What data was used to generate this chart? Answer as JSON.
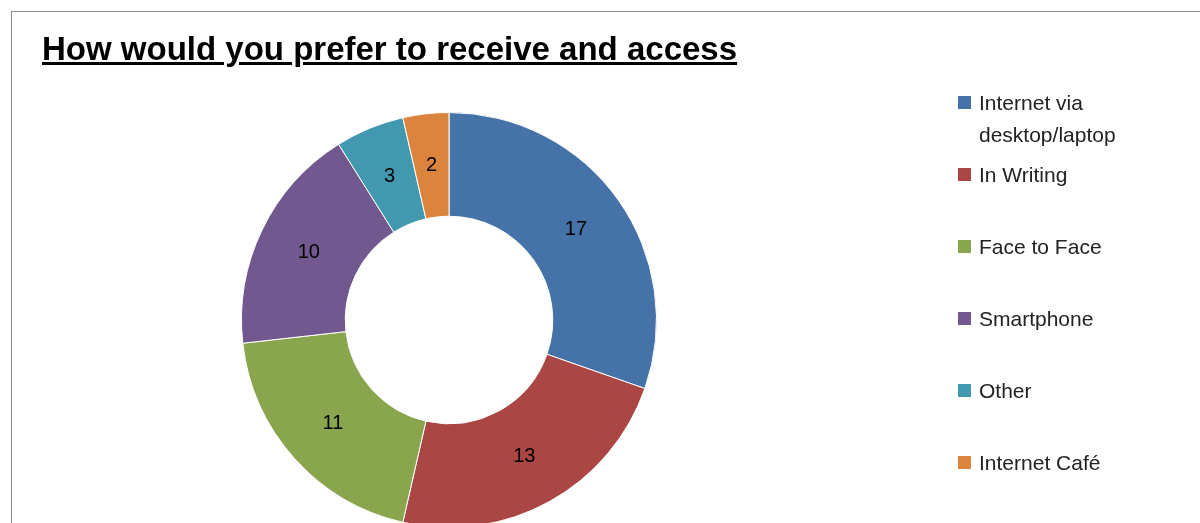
{
  "chart_data": {
    "type": "donut",
    "title": "How would you prefer to receive and access",
    "categories": [
      "Internet via desktop/laptop",
      "In Writing",
      "Face to Face",
      "Smartphone",
      "Other",
      "Internet Café"
    ],
    "values": [
      17,
      13,
      11,
      10,
      3,
      2
    ],
    "colors": [
      "#4572a7",
      "#aa4643",
      "#89a54e",
      "#71588f",
      "#4198af",
      "#db843d"
    ],
    "data_labels": true,
    "legend": "right"
  }
}
